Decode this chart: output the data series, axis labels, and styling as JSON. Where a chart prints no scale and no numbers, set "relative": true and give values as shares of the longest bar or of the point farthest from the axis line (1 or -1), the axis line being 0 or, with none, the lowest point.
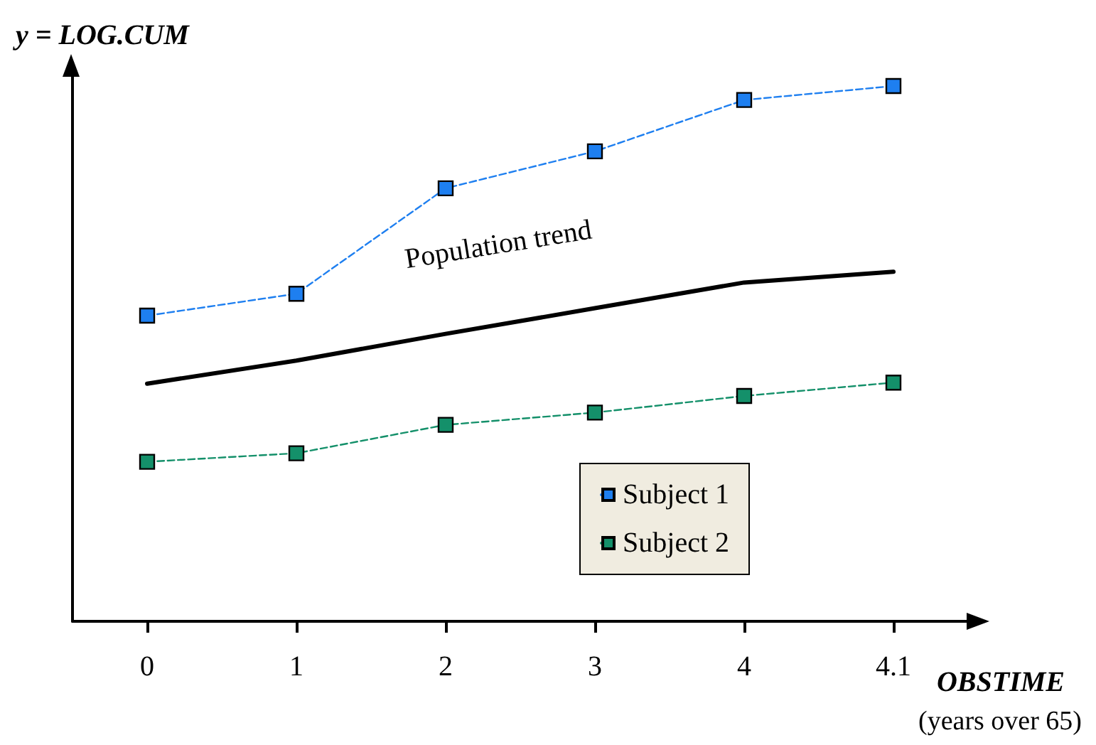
{
  "chart_data": {
    "type": "line",
    "relative": true,
    "ylabel": "y = LOG.CUM",
    "xlabel": "OBSTIME",
    "categories": [
      "0",
      "1",
      "2",
      "3",
      "4",
      "4.1"
    ],
    "series": [
      {
        "name": "Subject 1",
        "color": "#1e7ff0",
        "values": [
          0.571,
          0.612,
          0.809,
          0.878,
          0.974,
          1
        ],
        "marker": "square",
        "line_style": "dashed"
      },
      {
        "name": "Subject 2",
        "color": "#14906a",
        "values": [
          0.298,
          0.314,
          0.367,
          0.39,
          0.421,
          0.446
        ],
        "marker": "square",
        "line_style": "dashed"
      },
      {
        "color": "#000000",
        "values": [
          0.444,
          0.487,
          0.537,
          0.585,
          0.633,
          0.653
        ],
        "marker": "none",
        "line_style": "solid"
      }
    ],
    "annotations": [
      "Population trend",
      "(years over 65)"
    ],
    "legend": "bottom right",
    "grid": false
  }
}
